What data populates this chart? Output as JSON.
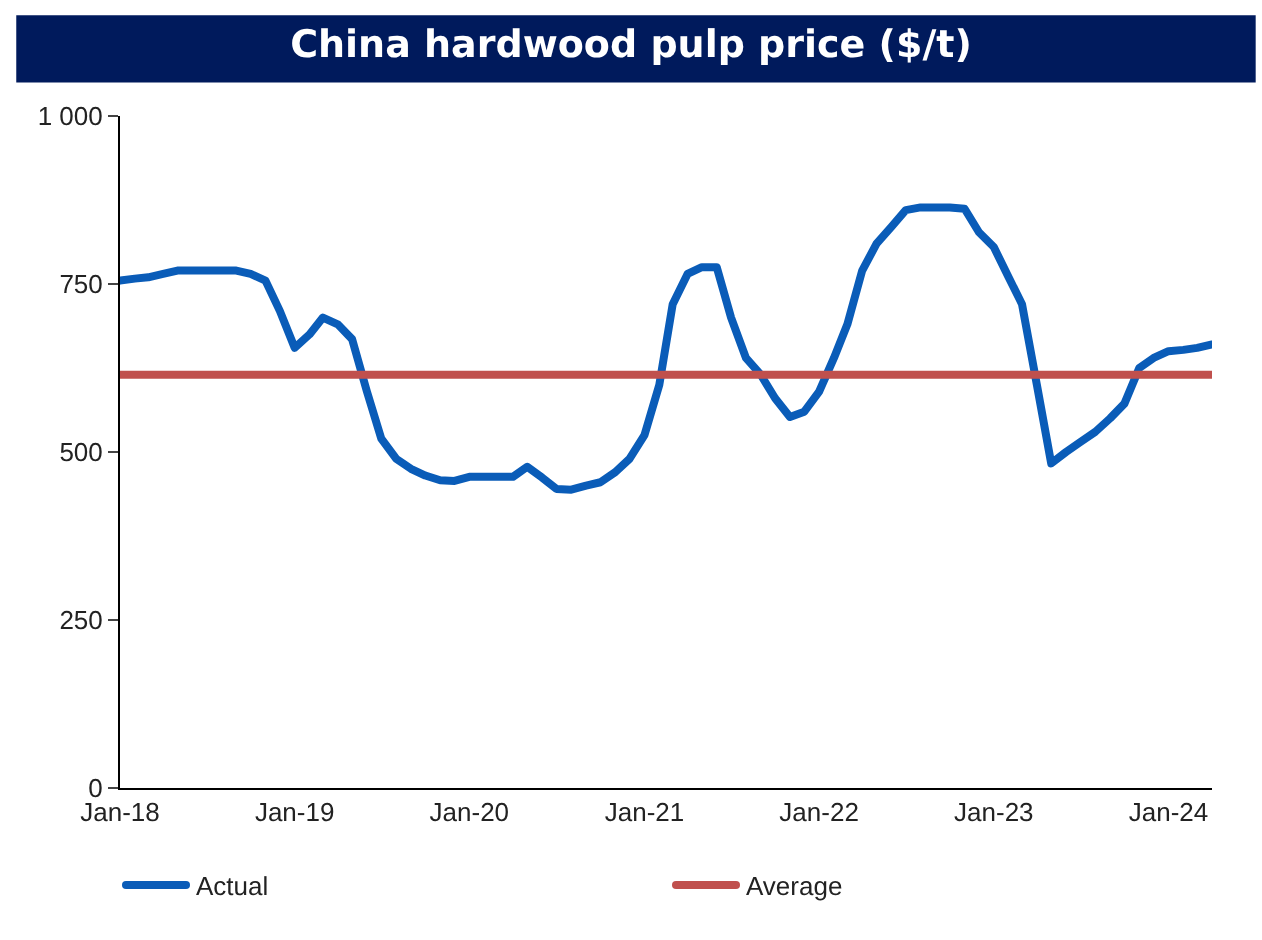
{
  "chart_data": {
    "type": "line",
    "title": "China hardwood pulp price ($/t)",
    "x": [
      "2018-01",
      "2018-02",
      "2018-03",
      "2018-04",
      "2018-05",
      "2018-06",
      "2018-07",
      "2018-08",
      "2018-09",
      "2018-10",
      "2018-11",
      "2018-12",
      "2019-01",
      "2019-02",
      "2019-03",
      "2019-04",
      "2019-05",
      "2019-06",
      "2019-07",
      "2019-08",
      "2019-09",
      "2019-10",
      "2019-11",
      "2019-12",
      "2020-01",
      "2020-02",
      "2020-03",
      "2020-04",
      "2020-05",
      "2020-06",
      "2020-07",
      "2020-08",
      "2020-09",
      "2020-10",
      "2020-11",
      "2020-12",
      "2021-01",
      "2021-02",
      "2021-03",
      "2021-04",
      "2021-05",
      "2021-06",
      "2021-07",
      "2021-08",
      "2021-09",
      "2021-10",
      "2021-11",
      "2021-12",
      "2022-01",
      "2022-02",
      "2022-03",
      "2022-04",
      "2022-05",
      "2022-06",
      "2022-07",
      "2022-08",
      "2022-09",
      "2022-10",
      "2022-11",
      "2022-12",
      "2023-01",
      "2023-02",
      "2023-03",
      "2023-04",
      "2023-05",
      "2023-06",
      "2023-07",
      "2023-08",
      "2023-09",
      "2023-10",
      "2023-11",
      "2023-12",
      "2024-01",
      "2024-02",
      "2024-03",
      "2024-04"
    ],
    "series": [
      {
        "name": "Actual",
        "color": "#0a5cb8",
        "values": [
          755,
          758,
          760,
          765,
          770,
          770,
          770,
          770,
          770,
          765,
          755,
          710,
          655,
          675,
          700,
          690,
          668,
          590,
          520,
          490,
          475,
          465,
          458,
          457,
          463,
          463,
          463,
          463,
          478,
          462,
          445,
          444,
          450,
          455,
          470,
          490,
          525,
          600,
          720,
          765,
          775,
          775,
          700,
          640,
          615,
          580,
          552,
          560,
          590,
          640,
          690,
          770,
          810,
          835,
          860,
          864,
          864,
          864,
          862,
          827,
          805,
          760,
          720,
          600,
          483,
          500,
          515,
          530,
          550,
          572,
          625,
          640,
          650,
          652,
          655,
          660
        ]
      }
    ],
    "ref_lines": [
      {
        "axis": "y",
        "value": 615,
        "label": "Average",
        "color": "#c0504d"
      }
    ],
    "xlim": [
      "2018-01",
      "2024-04"
    ],
    "xticks": [
      {
        "value": "2018-01",
        "label": "Jan-18"
      },
      {
        "value": "2019-01",
        "label": "Jan-19"
      },
      {
        "value": "2020-01",
        "label": "Jan-20"
      },
      {
        "value": "2021-01",
        "label": "Jan-21"
      },
      {
        "value": "2022-01",
        "label": "Jan-22"
      },
      {
        "value": "2023-01",
        "label": "Jan-23"
      },
      {
        "value": "2024-01",
        "label": "Jan-24"
      }
    ],
    "ylim": [
      0,
      1000
    ],
    "yticks": [
      0,
      250,
      500,
      750,
      {
        "value": 1000,
        "label": "1 000"
      }
    ],
    "legend": "bottom",
    "marker": "none",
    "line_style": "solid"
  }
}
